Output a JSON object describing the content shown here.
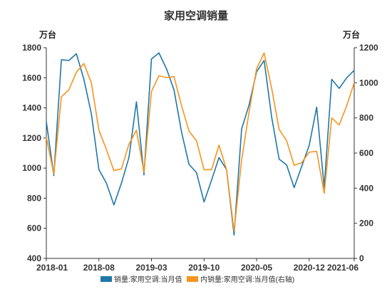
{
  "chart_data": {
    "type": "line",
    "title": "家用空调销量",
    "ylabel_left": "万台",
    "ylabel_right": "万台",
    "x_ticks": [
      "2018-01",
      "2018-08",
      "2019-03",
      "2019-10",
      "2020-05",
      "2020-12",
      "2021-06"
    ],
    "y_left_ticks": [
      "400",
      "600",
      "800",
      "1000",
      "1200",
      "1400",
      "1600",
      "1800"
    ],
    "y_right_ticks": [
      "0",
      "200",
      "400",
      "600",
      "800",
      "1000",
      "1200"
    ],
    "ylim_left": [
      400,
      1800
    ],
    "ylim_right": [
      0,
      1200
    ],
    "x": [
      "2018-01",
      "2018-02",
      "2018-03",
      "2018-04",
      "2018-05",
      "2018-06",
      "2018-07",
      "2018-08",
      "2018-09",
      "2018-10",
      "2018-11",
      "2018-12",
      "2019-01",
      "2019-02",
      "2019-03",
      "2019-04",
      "2019-05",
      "2019-06",
      "2019-07",
      "2019-08",
      "2019-09",
      "2019-10",
      "2019-11",
      "2019-12",
      "2020-01",
      "2020-02",
      "2020-03",
      "2020-04",
      "2020-05",
      "2020-06",
      "2020-07",
      "2020-08",
      "2020-09",
      "2020-10",
      "2020-11",
      "2020-12",
      "2021-01",
      "2021-02",
      "2021-03",
      "2021-04",
      "2021-05",
      "2021-06"
    ],
    "series": [
      {
        "name": "销量:家用空调:当月值",
        "axis": "left",
        "color": "#1f77a8",
        "values": [
          1310,
          950,
          1720,
          1715,
          1760,
          1590,
          1360,
          990,
          900,
          755,
          900,
          1070,
          1440,
          955,
          1725,
          1765,
          1660,
          1520,
          1240,
          1025,
          970,
          775,
          920,
          1070,
          990,
          555,
          1260,
          1420,
          1640,
          1715,
          1340,
          1060,
          1020,
          870,
          1010,
          1150,
          1405,
          870,
          1590,
          1530,
          1600,
          1650
        ]
      },
      {
        "name": "内销量:家用空调:当月值(右轴)",
        "axis": "right",
        "color": "#f7941d",
        "values": [
          690,
          480,
          920,
          960,
          1060,
          1110,
          1000,
          730,
          620,
          500,
          510,
          650,
          730,
          490,
          950,
          1040,
          1030,
          1035,
          870,
          725,
          670,
          505,
          505,
          645,
          505,
          155,
          560,
          835,
          1080,
          1170,
          970,
          735,
          670,
          530,
          545,
          605,
          610,
          370,
          800,
          760,
          870,
          1000
        ]
      }
    ],
    "legend_position": "bottom",
    "grid": false
  }
}
